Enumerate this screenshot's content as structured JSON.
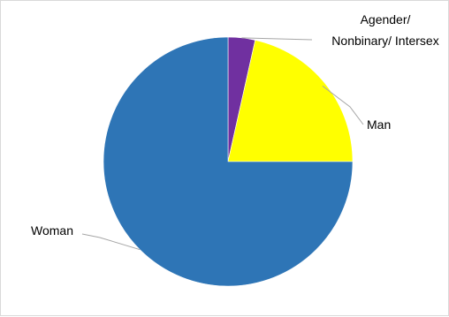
{
  "chart_data": {
    "type": "pie",
    "slices": [
      {
        "label": "Agender/ Nonbinary/ Intersex",
        "value": 3.5,
        "color": "#7030a0"
      },
      {
        "label": "Man",
        "value": 21.5,
        "color": "#ffff00"
      },
      {
        "label": "Woman",
        "value": 75.0,
        "color": "#2e75b6"
      }
    ],
    "start_angle_deg": 0,
    "direction": "clockwise",
    "legend": "none",
    "labels_position": "outside-with-leader-lines"
  }
}
